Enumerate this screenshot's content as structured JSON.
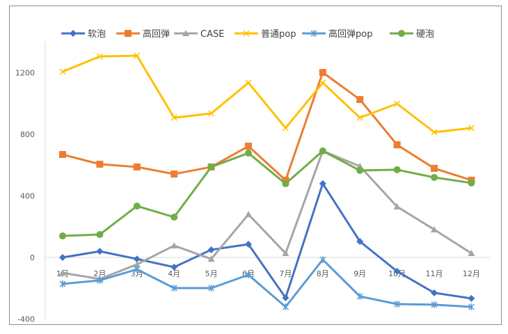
{
  "chart_data": {
    "type": "line",
    "categories": [
      "1月",
      "2月",
      "3月",
      "4月",
      "5月",
      "6月",
      "7月",
      "8月",
      "9月",
      "10月",
      "11月",
      "12月"
    ],
    "yticks": [
      -400,
      0,
      400,
      800,
      1200
    ],
    "ylim": [
      -400,
      1400
    ],
    "legend_position": "top",
    "grid": false,
    "series": [
      {
        "name": "软泡",
        "color": "#4472c4",
        "marker": "diamond",
        "values": [
          0,
          40,
          -10,
          -63,
          50,
          86,
          -262,
          480,
          104,
          -90,
          -230,
          -266
        ]
      },
      {
        "name": "高回弹",
        "color": "#ed7d31",
        "marker": "square",
        "values": [
          669,
          606,
          588,
          542,
          588,
          723,
          502,
          1202,
          1026,
          732,
          579,
          502
        ]
      },
      {
        "name": "CASE",
        "color": "#a5a5a5",
        "marker": "triangle",
        "values": [
          -100,
          -140,
          -45,
          77,
          -10,
          280,
          27,
          692,
          592,
          330,
          181,
          27
        ]
      },
      {
        "name": "普通pop",
        "color": "#ffc000",
        "marker": "x",
        "values": [
          1207,
          1306,
          1311,
          908,
          936,
          1135,
          841,
          1135,
          908,
          999,
          814,
          841
        ]
      },
      {
        "name": "高回弹pop",
        "color": "#5b9bd5",
        "marker": "star",
        "values": [
          -172,
          -149,
          -77,
          -199,
          -199,
          -113,
          -321,
          -14,
          -253,
          -303,
          -307,
          -321
        ]
      },
      {
        "name": "硬泡",
        "color": "#70ad47",
        "marker": "circle",
        "values": [
          140,
          149,
          334,
          262,
          588,
          678,
          479,
          692,
          565,
          570,
          520,
          484
        ]
      }
    ]
  }
}
